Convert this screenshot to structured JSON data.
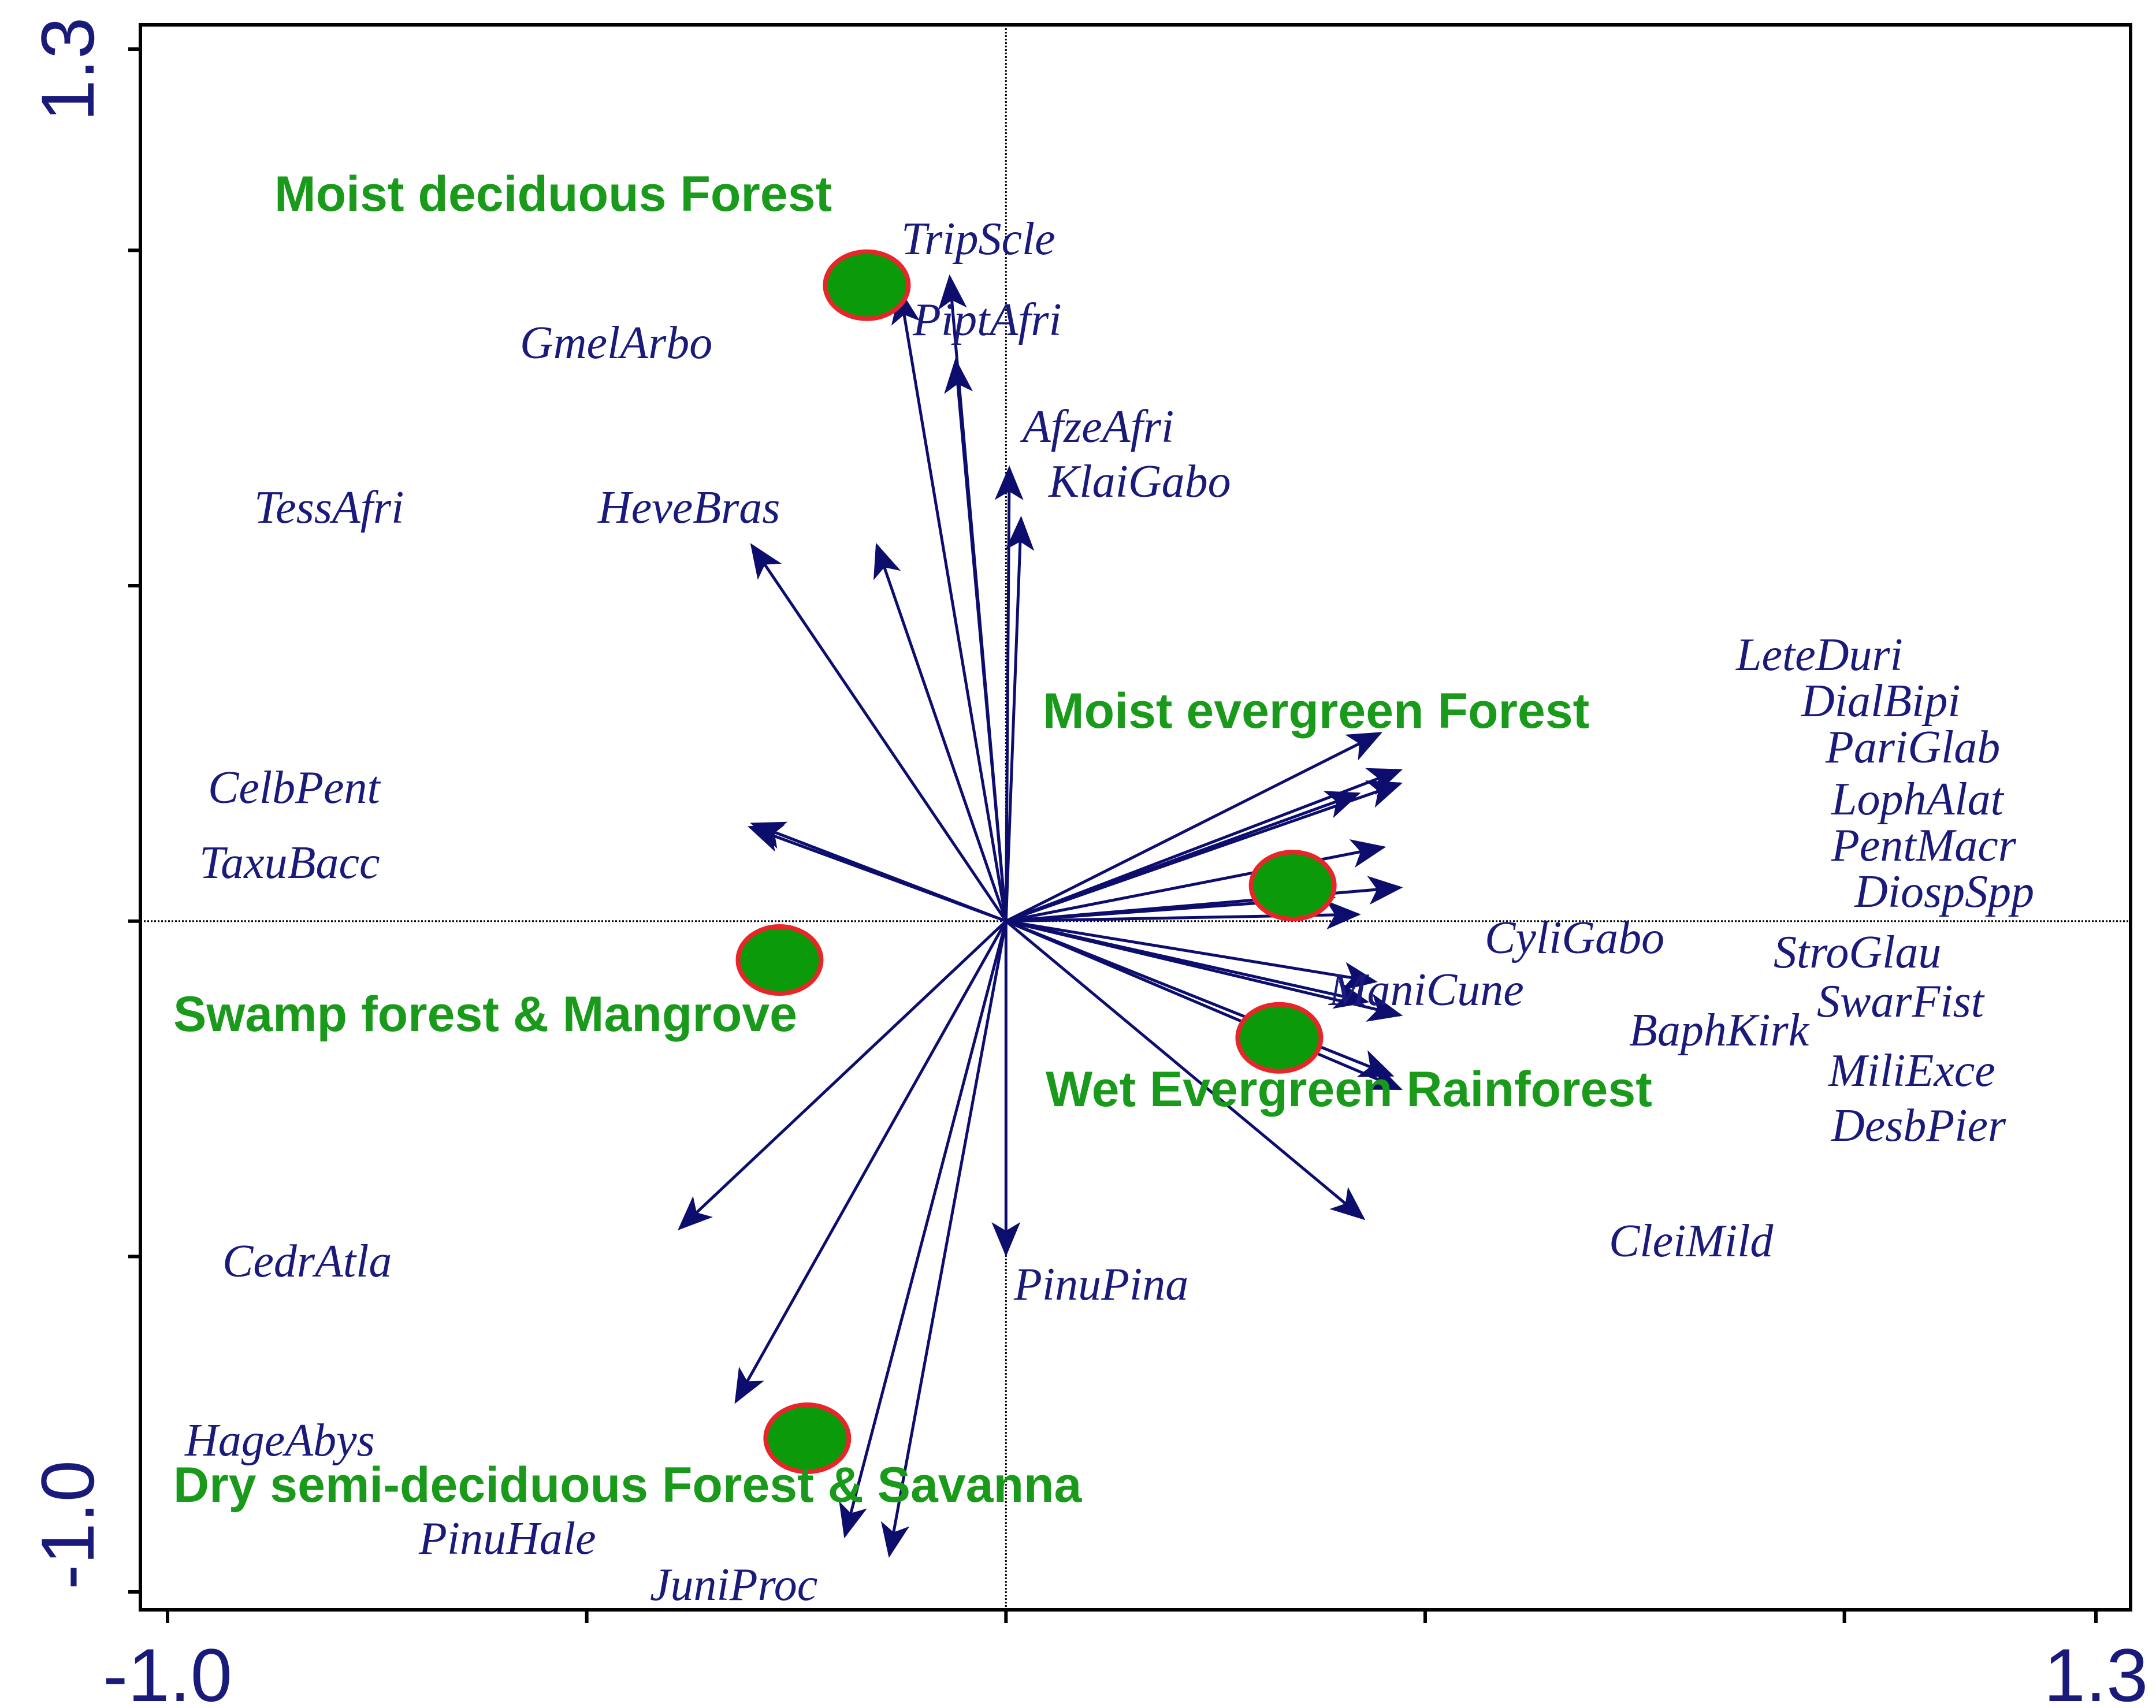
{
  "chart_data": {
    "type": "scatter",
    "subtype": "ordination biplot",
    "title": "",
    "xlabel": "",
    "ylabel": "",
    "xlim": [
      -1.0,
      1.3
    ],
    "ylim": [
      -1.0,
      1.3
    ],
    "x_tick_labels": [
      "-1.0",
      "1.3"
    ],
    "y_tick_labels": [
      "1.3",
      "-1.0"
    ],
    "colors": {
      "arrow": "#0d0d6e",
      "species_text": "#1a1a7a",
      "group_text": "#1a9a1a",
      "centroid_fill": "#0a9a0a",
      "centroid_stroke": "#e8262a",
      "axis_text": "#1a1a7a"
    },
    "species_arrows": [
      {
        "name": "TripScle",
        "x": -0.067,
        "y": 0.96
      },
      {
        "name": "PiptAfri",
        "x": -0.06,
        "y": 0.835
      },
      {
        "name": "GmelArbo",
        "x": -0.126,
        "y": 0.938
      },
      {
        "name": "AfzeAfri",
        "x": 0.004,
        "y": 0.675
      },
      {
        "name": "KlaiGabo",
        "x": 0.018,
        "y": 0.6
      },
      {
        "name": "TessAfri",
        "x": -0.303,
        "y": 0.56
      },
      {
        "name": "HeveBras",
        "x": -0.154,
        "y": 0.56
      },
      {
        "name": "CelbPent",
        "x": -0.302,
        "y": 0.145
      },
      {
        "name": "TaxuBacc",
        "x": -0.305,
        "y": 0.14
      },
      {
        "name": "LeteDuri",
        "x": 0.446,
        "y": 0.28
      },
      {
        "name": "DialBipi",
        "x": 0.47,
        "y": 0.225
      },
      {
        "name": "PariGlab",
        "x": 0.42,
        "y": 0.19
      },
      {
        "name": "LophAlat",
        "x": 0.47,
        "y": 0.205
      },
      {
        "name": "PentMacr",
        "x": 0.45,
        "y": 0.11
      },
      {
        "name": "DiospSpp",
        "x": 0.47,
        "y": 0.05
      },
      {
        "name": "CyliGabo",
        "x": 0.39,
        "y": 0.035
      },
      {
        "name": "StroGlau",
        "x": 0.42,
        "y": 0.01
      },
      {
        "name": "ManiCune",
        "x": 0.44,
        "y": -0.09
      },
      {
        "name": "SwarFist",
        "x": 0.43,
        "y": -0.12
      },
      {
        "name": "BaphKirk",
        "x": 0.47,
        "y": -0.14
      },
      {
        "name": "MiliExce",
        "x": 0.46,
        "y": -0.23
      },
      {
        "name": "DesbPier",
        "x": 0.47,
        "y": -0.25
      },
      {
        "name": "CleiMild",
        "x": 0.426,
        "y": -0.443
      },
      {
        "name": "PinuPina",
        "x": 0.0,
        "y": -0.496
      },
      {
        "name": "CedrAtla",
        "x": -0.389,
        "y": -0.458
      },
      {
        "name": "HageAbys",
        "x": -0.322,
        "y": -0.716
      },
      {
        "name": "PinuHale",
        "x": -0.192,
        "y": -0.916
      },
      {
        "name": "JuniProc",
        "x": -0.139,
        "y": -0.945
      }
    ],
    "group_centroids": [
      {
        "name": "Moist deciduous Forest",
        "x": -0.166,
        "y": 0.948
      },
      {
        "name": "Moist evergreen Forest",
        "x": 0.342,
        "y": 0.053
      },
      {
        "name": "Swamp forest & Mangrove",
        "x": -0.27,
        "y": -0.058
      },
      {
        "name": "Wet Evergreen Rainforest",
        "x": 0.326,
        "y": -0.174
      },
      {
        "name": "Dry semi-deciduous Forest & Savanna",
        "x": -0.237,
        "y": -0.771
      }
    ]
  }
}
